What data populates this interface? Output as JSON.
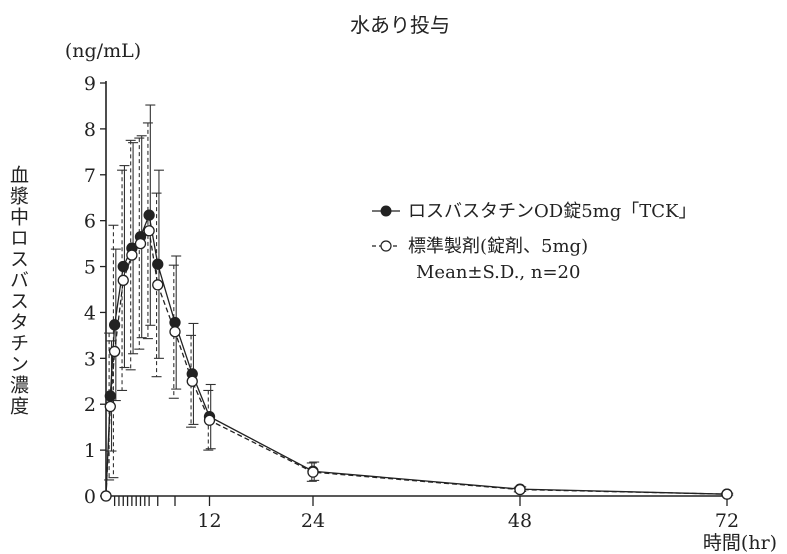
{
  "chart_data": {
    "type": "line",
    "title": "水あり投与",
    "y_unit": "(ng/mL)",
    "ylabel": "血漿中ロスバスタチン濃度",
    "xlabel": "時間(hr)",
    "ylim": [
      0,
      9
    ],
    "xlim": [
      0,
      72
    ],
    "y_ticks": [
      0,
      1,
      2,
      3,
      4,
      5,
      6,
      7,
      8,
      9
    ],
    "x_tick_labels": [
      12,
      24,
      48,
      72
    ],
    "x_minor_ticks": [
      1,
      1.5,
      2,
      2.5,
      3,
      3.5,
      4,
      4.5,
      5,
      6,
      8
    ],
    "grid": false,
    "legend_position": "right",
    "series": [
      {
        "name": "ロスバスタチンOD錠5mg「TCK」",
        "marker": "filled-circle",
        "line": "solid",
        "x": [
          0,
          0.5,
          1,
          2,
          3,
          4,
          5,
          6,
          8,
          10,
          12,
          24,
          48,
          72
        ],
        "y": [
          0,
          2.18,
          3.73,
          5.0,
          5.4,
          5.65,
          6.12,
          5.05,
          3.78,
          2.66,
          1.73,
          0.54,
          0.15,
          0.04
        ],
        "sd": [
          0,
          1.2,
          1.65,
          2.2,
          2.3,
          2.2,
          2.4,
          2.05,
          1.45,
          1.1,
          0.7,
          0.2,
          0.05,
          0.02
        ]
      },
      {
        "name": "標準製剤(錠剤、5mg)",
        "marker": "open-circle",
        "line": "dashed",
        "x": [
          0,
          0.5,
          1,
          2,
          3,
          4,
          5,
          6,
          8,
          10,
          12,
          24,
          48,
          72
        ],
        "y": [
          0,
          1.95,
          3.15,
          4.7,
          5.25,
          5.5,
          5.78,
          4.6,
          3.58,
          2.5,
          1.65,
          0.52,
          0.14,
          0.04
        ],
        "sd": [
          0,
          1.6,
          2.75,
          2.4,
          2.5,
          2.3,
          2.35,
          2.0,
          1.45,
          1.0,
          0.65,
          0.2,
          0.05,
          0.02
        ]
      }
    ],
    "annotation": "Mean±S.D., n=20"
  }
}
